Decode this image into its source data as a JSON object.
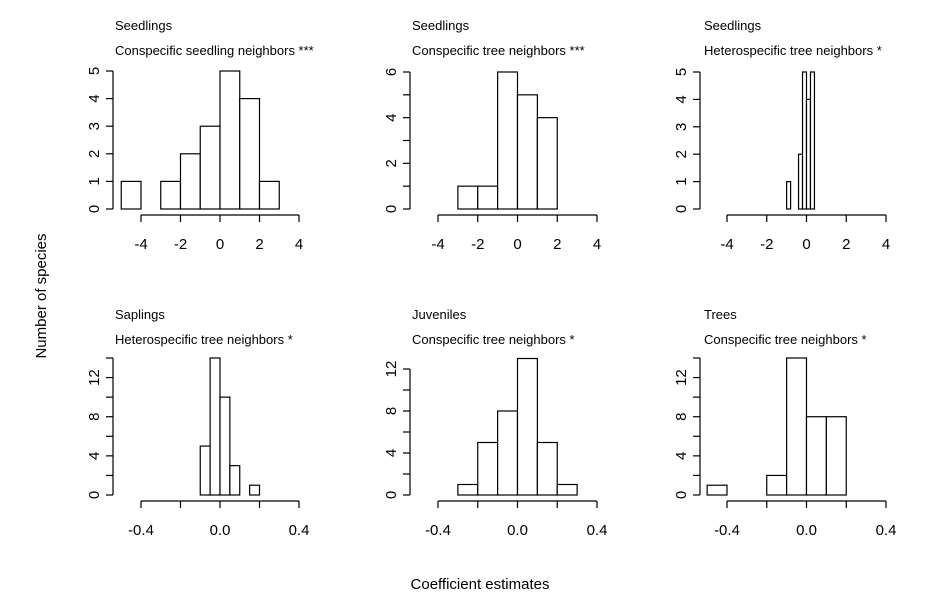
{
  "figure": {
    "ylabel": "Number of species",
    "xlabel": "Coefficient estimates"
  },
  "chart_data": [
    {
      "type": "bar",
      "stage": "Seedlings",
      "title": "Conspecific seedling neighbors ***",
      "bin_edges": [
        -5,
        -4,
        -3,
        -2,
        -1,
        0,
        1,
        2,
        3
      ],
      "counts": [
        1,
        0,
        1,
        2,
        3,
        5,
        4,
        1
      ],
      "xlim": [
        -4,
        4
      ],
      "xticks": [
        -4,
        -2,
        0,
        2,
        4
      ],
      "xtick_labels": [
        "-4",
        "-2",
        "0",
        "2",
        "4"
      ],
      "ylim": [
        0,
        5
      ],
      "yticks": [
        0,
        1,
        2,
        3,
        4,
        5
      ],
      "ytick_labels": [
        "0",
        "1",
        "2",
        "3",
        "4",
        "5"
      ]
    },
    {
      "type": "bar",
      "stage": "Seedlings",
      "title": "Conspecific tree neighbors ***",
      "bin_edges": [
        -3,
        -2,
        -1,
        0,
        1,
        2
      ],
      "counts": [
        1,
        1,
        6,
        5,
        4
      ],
      "xlim": [
        -4,
        4
      ],
      "xticks": [
        -4,
        -2,
        0,
        2,
        4
      ],
      "xtick_labels": [
        "-4",
        "-2",
        "0",
        "2",
        "4"
      ],
      "ylim": [
        0,
        6
      ],
      "yticks": [
        0,
        1,
        2,
        3,
        4,
        5,
        6
      ],
      "ytick_labels": [
        "0",
        "",
        "2",
        "",
        "4",
        "",
        "6"
      ]
    },
    {
      "type": "bar",
      "stage": "Seedlings",
      "title": "Heterospecific tree neighbors *",
      "bin_edges": [
        -1.0,
        -0.8,
        -0.6,
        -0.4,
        -0.2,
        0.0,
        0.2,
        0.4
      ],
      "counts": [
        1,
        0,
        0,
        2,
        5,
        4,
        5
      ],
      "xlim": [
        -4,
        4
      ],
      "xticks": [
        -4,
        -2,
        0,
        2,
        4
      ],
      "xtick_labels": [
        "-4",
        "-2",
        "0",
        "2",
        "4"
      ],
      "ylim": [
        0,
        5
      ],
      "yticks": [
        0,
        1,
        2,
        3,
        4,
        5
      ],
      "ytick_labels": [
        "0",
        "1",
        "2",
        "3",
        "4",
        "5"
      ]
    },
    {
      "type": "bar",
      "stage": "Saplings",
      "title": "Heterospecific tree neighbors *",
      "bin_edges": [
        -0.1,
        -0.05,
        0.0,
        0.05,
        0.1,
        0.15,
        0.2
      ],
      "counts": [
        5,
        14,
        10,
        3,
        0,
        1
      ],
      "xlim": [
        -0.4,
        0.4
      ],
      "xticks": [
        -0.4,
        -0.2,
        0.0,
        0.2,
        0.4
      ],
      "xtick_labels": [
        "-0.4",
        "",
        "0.0",
        "",
        "0.4"
      ],
      "ylim": [
        0,
        14
      ],
      "yticks": [
        0,
        2,
        4,
        6,
        8,
        10,
        12,
        14
      ],
      "ytick_labels": [
        "0",
        "",
        "4",
        "",
        "8",
        "",
        "12",
        ""
      ]
    },
    {
      "type": "bar",
      "stage": "Juveniles",
      "title": "Conspecific tree neighbors *",
      "bin_edges": [
        -0.3,
        -0.2,
        -0.1,
        0.0,
        0.1,
        0.2,
        0.3
      ],
      "counts": [
        1,
        5,
        8,
        13,
        5,
        1
      ],
      "xlim": [
        -0.4,
        0.4
      ],
      "xticks": [
        -0.4,
        -0.2,
        0.0,
        0.2,
        0.4
      ],
      "xtick_labels": [
        "-0.4",
        "",
        "0.0",
        "",
        "0.4"
      ],
      "ylim": [
        0,
        12
      ],
      "yticks": [
        0,
        2,
        4,
        6,
        8,
        10,
        12
      ],
      "ytick_labels": [
        "0",
        "",
        "4",
        "",
        "8",
        "",
        "12"
      ]
    },
    {
      "type": "bar",
      "stage": "Trees",
      "title": "Conspecific tree neighbors *",
      "bin_edges": [
        -0.5,
        -0.4,
        -0.3,
        -0.2,
        -0.1,
        0.0,
        0.1,
        0.2
      ],
      "counts": [
        1,
        0,
        0,
        2,
        14,
        8,
        8
      ],
      "xlim": [
        -0.4,
        0.4
      ],
      "xticks": [
        -0.4,
        -0.2,
        0.0,
        0.2,
        0.4
      ],
      "xtick_labels": [
        "-0.4",
        "",
        "0.0",
        "",
        "0.4"
      ],
      "ylim": [
        0,
        14
      ],
      "yticks": [
        0,
        2,
        4,
        6,
        8,
        10,
        12,
        14
      ],
      "ytick_labels": [
        "0",
        "",
        "4",
        "",
        "8",
        "",
        "12",
        ""
      ]
    }
  ]
}
